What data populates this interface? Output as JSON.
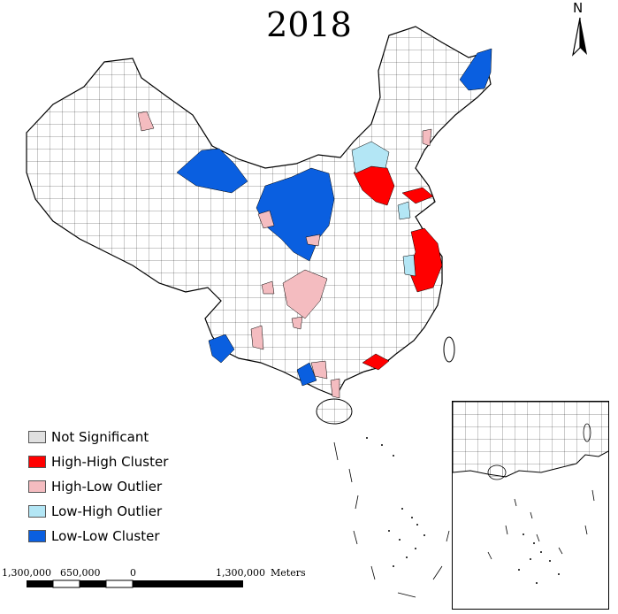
{
  "title": "2018",
  "north_arrow": {
    "label": "N"
  },
  "legend": {
    "items": [
      {
        "label": "Not Significant",
        "color": "#e0e0e0"
      },
      {
        "label": "High-High Cluster",
        "color": "#ff0000"
      },
      {
        "label": "High-Low Outlier",
        "color": "#f4bcc0"
      },
      {
        "label": "Low-High Outlier",
        "color": "#b3e6f5"
      },
      {
        "label": "Low-Low Cluster",
        "color": "#0a5fe0"
      }
    ]
  },
  "scale_bar": {
    "labels": [
      "1,300,000",
      "650,000",
      "0",
      "1,300,000"
    ],
    "unit": "Meters"
  },
  "colors": {
    "boundary": "#000000",
    "high_high": "#ff0000",
    "high_low": "#f4bcc0",
    "low_high": "#b3e6f5",
    "low_low": "#0a5fe0"
  }
}
